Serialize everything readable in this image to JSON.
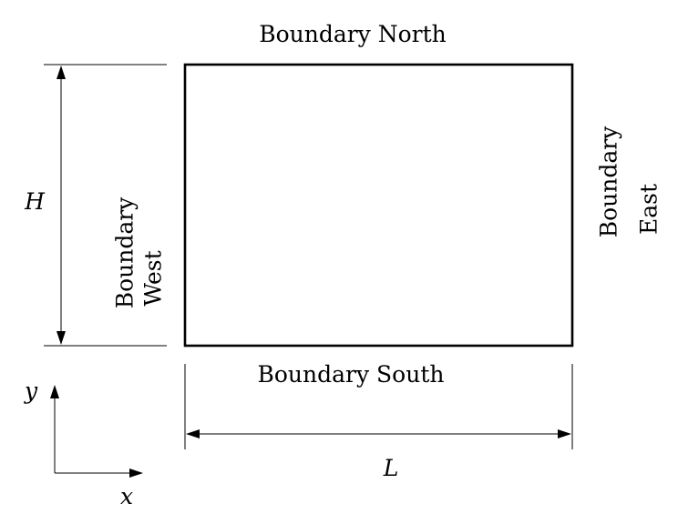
{
  "boundaries": {
    "north": "Boundary North",
    "south": "Boundary South",
    "west_line1": "Boundary",
    "west_line2": "West",
    "east_line1": "Boundary",
    "east_line2": "East"
  },
  "dimensions": {
    "height_label": "H",
    "length_label": "L"
  },
  "axes": {
    "x_label": "x",
    "y_label": "y"
  }
}
